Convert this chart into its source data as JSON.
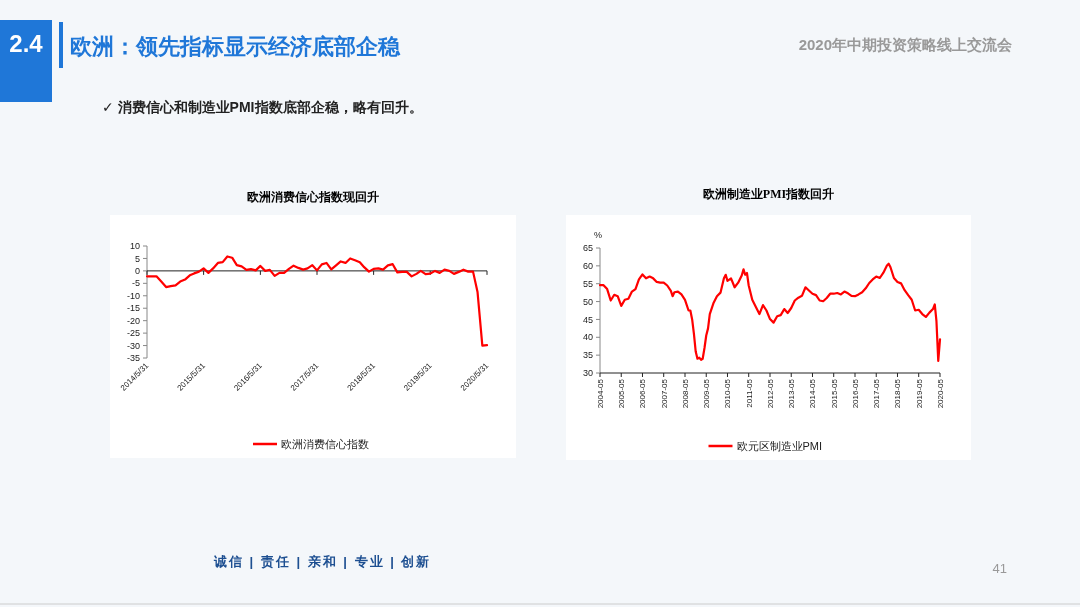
{
  "chart_data": [
    {
      "type": "other",
      "title": "欧洲：领先指标显示经济底部企稳",
      "subtitle": "✓ 消费信心和制造业PMI指数底部企稳，略有回升。",
      "annotations": [
        "2.4",
        "2020年中期投资策略线上交流会",
        "诚信 | 责任 | 亲和 | 专业 | 创新",
        "41"
      ]
    },
    {
      "type": "line",
      "title": "欧洲消费信心指数现回升",
      "legend": "bottom",
      "x": [
        "2014-05",
        "2014-06",
        "2014-07",
        "2014-08",
        "2014-09",
        "2014-10",
        "2014-11",
        "2014-12",
        "2015-01",
        "2015-02",
        "2015-03",
        "2015-04",
        "2015-05",
        "2015-06",
        "2015-07",
        "2015-08",
        "2015-09",
        "2015-10",
        "2015-11",
        "2015-12",
        "2016-01",
        "2016-02",
        "2016-03",
        "2016-04",
        "2016-05",
        "2016-06",
        "2016-07",
        "2016-08",
        "2016-09",
        "2016-10",
        "2016-11",
        "2016-12",
        "2017-01",
        "2017-02",
        "2017-03",
        "2017-04",
        "2017-05",
        "2017-06",
        "2017-07",
        "2017-08",
        "2017-09",
        "2017-10",
        "2017-11",
        "2017-12",
        "2018-01",
        "2018-02",
        "2018-03",
        "2018-04",
        "2018-05",
        "2018-06",
        "2018-07",
        "2018-08",
        "2018-09",
        "2018-10",
        "2018-11",
        "2018-12",
        "2019-01",
        "2019-02",
        "2019-03",
        "2019-04",
        "2019-05",
        "2019-06",
        "2019-07",
        "2019-08",
        "2019-09",
        "2019-10",
        "2019-11",
        "2019-12",
        "2020-01",
        "2020-02",
        "2020-03",
        "2020-04",
        "2020-05"
      ],
      "series": [
        {
          "name": "欧洲消费信心指数",
          "color": "#ff0000",
          "values": [
            -2.2,
            -2.2,
            -2.2,
            -4.3,
            -6.5,
            -6.1,
            -5.8,
            -4.3,
            -3.5,
            -1.8,
            -1,
            -0.3,
            1,
            -0.8,
            1,
            3.2,
            3.5,
            5.8,
            5.3,
            2.3,
            1.8,
            0.4,
            0.7,
            0.2,
            2,
            0,
            0.4,
            -2,
            -0.8,
            -0.8,
            0.8,
            2.1,
            1.2,
            0.5,
            1,
            2.3,
            0.2,
            2.6,
            3.2,
            0.6,
            2.2,
            3.8,
            3.2,
            5,
            4.3,
            3.5,
            1.5,
            -0.3,
            0.8,
            1,
            0.5,
            2.2,
            2.7,
            -0.6,
            -0.4,
            -0.4,
            -2.2,
            -1.2,
            0,
            -1.3,
            -1.1,
            0,
            -0.8,
            0.5,
            0,
            -1.2,
            -0.4,
            0.5,
            -0.3,
            -0.3,
            -8.5,
            -30,
            -29.8
          ]
        }
      ],
      "xlim": [
        "2014-05",
        "2020-05"
      ],
      "xticks": [
        {
          "value": "2014-05",
          "label": "2014/5/31"
        },
        {
          "value": "2015-05",
          "label": "2015/5/31"
        },
        {
          "value": "2016-05",
          "label": "2016/5/31"
        },
        {
          "value": "2017-05",
          "label": "2017/5/31"
        },
        {
          "value": "2018-05",
          "label": "2018/5/31"
        },
        {
          "value": "2019-05",
          "label": "2019/5/31"
        },
        {
          "value": "2020-05",
          "label": "2020/5/31"
        }
      ],
      "ylim": [
        -35,
        10
      ],
      "yticks": [
        -35,
        -30,
        -25,
        -20,
        -15,
        -10,
        -5,
        0,
        5,
        10
      ]
    },
    {
      "type": "line",
      "title": "欧洲制造业PMI指数回升",
      "ylabel": "%",
      "legend": "bottom",
      "x": [
        "2004-05",
        "2004-07",
        "2004-09",
        "2004-11",
        "2005-01",
        "2005-03",
        "2005-05",
        "2005-07",
        "2005-09",
        "2005-11",
        "2006-01",
        "2006-03",
        "2006-05",
        "2006-07",
        "2006-09",
        "2006-11",
        "2007-01",
        "2007-03",
        "2007-05",
        "2007-07",
        "2007-09",
        "2007-10",
        "2007-11",
        "2008-01",
        "2008-03",
        "2008-05",
        "2008-07",
        "2008-08",
        "2008-09",
        "2008-10",
        "2008-11",
        "2008-12",
        "2009-01",
        "2009-02",
        "2009-03",
        "2009-04",
        "2009-05",
        "2009-06",
        "2009-07",
        "2009-09",
        "2009-11",
        "2010-01",
        "2010-03",
        "2010-04",
        "2010-05",
        "2010-07",
        "2010-09",
        "2010-11",
        "2011-01",
        "2011-02",
        "2011-03",
        "2011-04",
        "2011-05",
        "2011-07",
        "2011-09",
        "2011-11",
        "2012-01",
        "2012-03",
        "2012-05",
        "2012-07",
        "2012-09",
        "2012-11",
        "2013-01",
        "2013-03",
        "2013-05",
        "2013-07",
        "2013-09",
        "2013-11",
        "2014-01",
        "2014-03",
        "2014-05",
        "2014-07",
        "2014-09",
        "2014-11",
        "2015-01",
        "2015-03",
        "2015-05",
        "2015-07",
        "2015-09",
        "2015-11",
        "2016-01",
        "2016-03",
        "2016-05",
        "2016-07",
        "2016-09",
        "2016-11",
        "2017-01",
        "2017-03",
        "2017-05",
        "2017-07",
        "2017-09",
        "2017-11",
        "2017-12",
        "2018-01",
        "2018-03",
        "2018-05",
        "2018-07",
        "2018-09",
        "2018-11",
        "2019-01",
        "2019-03",
        "2019-05",
        "2019-07",
        "2019-09",
        "2019-11",
        "2020-01",
        "2020-02",
        "2020-03",
        "2020-04",
        "2020-05"
      ],
      "series": [
        {
          "name": "欧元区制造业PMI",
          "color": "#ff0000",
          "values": [
            54.6,
            54.6,
            53.5,
            50.3,
            51.9,
            51.5,
            48.8,
            50.5,
            50.8,
            52.8,
            53.5,
            56.2,
            57.6,
            56.5,
            57,
            56.5,
            55.5,
            55.3,
            55.3,
            54.5,
            53,
            51.5,
            52.6,
            52.8,
            52,
            50.5,
            47.5,
            47.5,
            45,
            41,
            36,
            34,
            34.3,
            33.7,
            34,
            37,
            40.5,
            42.5,
            46.5,
            49.5,
            51.5,
            52.5,
            56.5,
            57.5,
            55.8,
            56.5,
            54,
            55.3,
            57.3,
            59,
            57.5,
            58,
            54.5,
            50.5,
            48.5,
            46.5,
            49,
            47.5,
            45.1,
            44.1,
            45.9,
            46.2,
            47.9,
            46.8,
            48.2,
            50.3,
            51.1,
            51.6,
            54,
            53.1,
            52.2,
            51.8,
            50.3,
            50.1,
            51,
            52.2,
            52.2,
            52.4,
            52,
            52.8,
            52.3,
            51.6,
            51.5,
            52,
            52.6,
            53.7,
            55.2,
            56.2,
            57,
            56.6,
            58.1,
            60.1,
            60.6,
            59.6,
            56.6,
            55.5,
            55.1,
            53.2,
            51.8,
            50.5,
            47.5,
            47.7,
            46.5,
            45.7,
            46.9,
            47.9,
            49.2,
            44.5,
            33.4,
            39.4
          ]
        }
      ],
      "xlim": [
        "2004-05",
        "2020-05"
      ],
      "xticks": [
        "2004-05",
        "2005-05",
        "2006-05",
        "2007-05",
        "2008-05",
        "2009-05",
        "2010-05",
        "2011-05",
        "2012-05",
        "2013-05",
        "2014-05",
        "2015-05",
        "2016-05",
        "2017-05",
        "2018-05",
        "2019-05",
        "2020-05"
      ],
      "ylim": [
        30,
        65
      ],
      "yticks": [
        30,
        35,
        40,
        45,
        50,
        55,
        60,
        65
      ]
    }
  ]
}
